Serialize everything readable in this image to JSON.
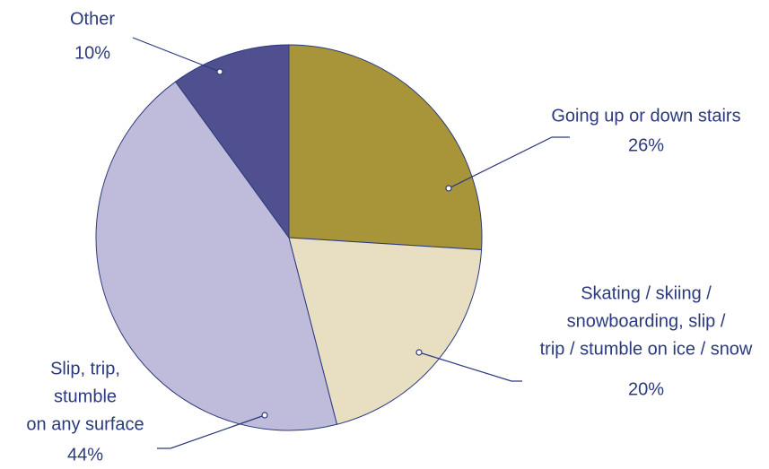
{
  "chart_data": {
    "type": "pie",
    "categories": [
      [
        "Going up or down stairs"
      ],
      [
        "Skating / skiing /",
        "snowboarding, slip /",
        "trip / stumble on ice / snow"
      ],
      [
        "Slip, trip,",
        "stumble",
        "on any surface"
      ],
      [
        "Other"
      ]
    ],
    "values": [
      26,
      20,
      44,
      10
    ],
    "value_labels": [
      "26%",
      "20%",
      "44%",
      "10%"
    ],
    "colors": [
      "#a89439",
      "#e8dfc3",
      "#bfbcdb",
      "#505090"
    ]
  }
}
